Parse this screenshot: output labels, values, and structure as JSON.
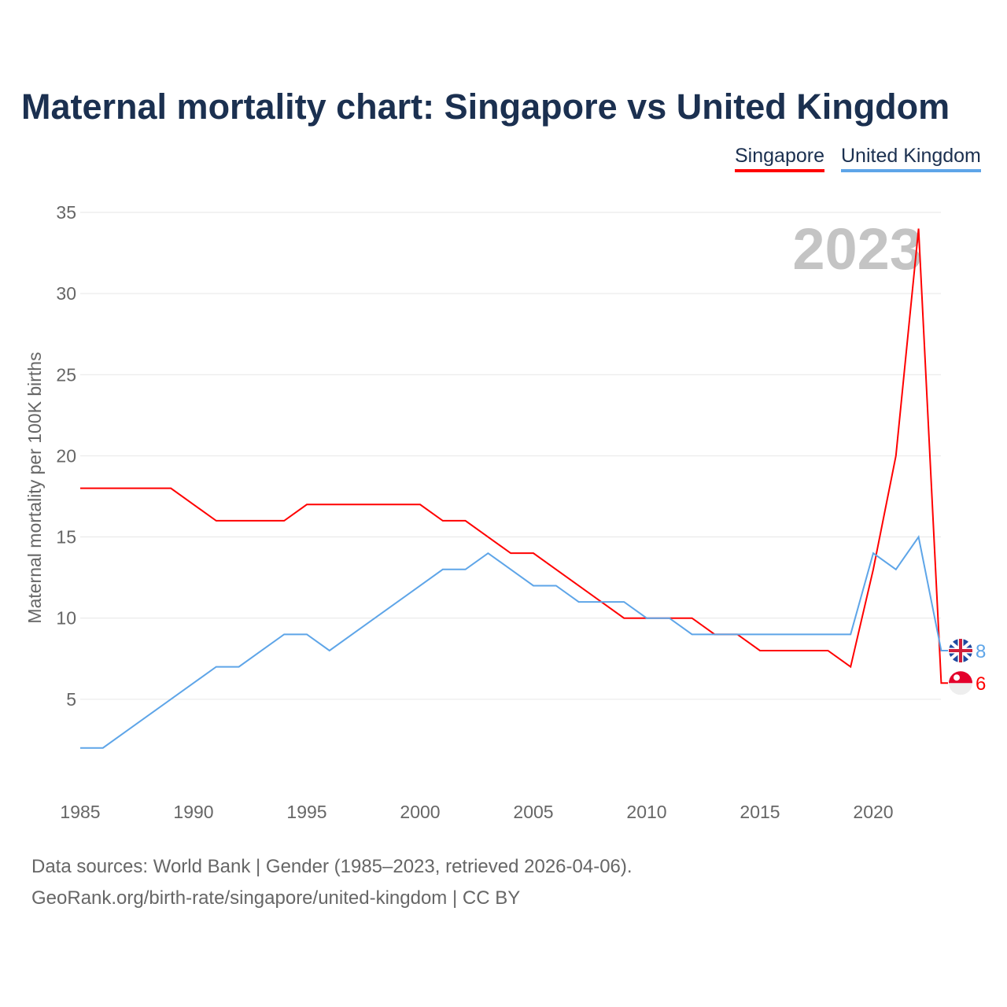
{
  "chart_data": {
    "type": "line",
    "title": "Maternal mortality chart: Singapore vs United Kingdom",
    "ylabel": "Maternal mortality per 100K births",
    "xlabel": "",
    "year_watermark": "2023",
    "xlim": [
      1985,
      2023
    ],
    "ylim": [
      0,
      35
    ],
    "xticks": [
      "1985",
      "1990",
      "1995",
      "2000",
      "2005",
      "2010",
      "2015",
      "2020"
    ],
    "yticks": [
      "5",
      "10",
      "15",
      "20",
      "25",
      "30",
      "35"
    ],
    "x": [
      1985,
      1986,
      1987,
      1988,
      1989,
      1990,
      1991,
      1992,
      1993,
      1994,
      1995,
      1996,
      1997,
      1998,
      1999,
      2000,
      2001,
      2002,
      2003,
      2004,
      2005,
      2006,
      2007,
      2008,
      2009,
      2010,
      2011,
      2012,
      2013,
      2014,
      2015,
      2016,
      2017,
      2018,
      2019,
      2020,
      2021,
      2022,
      2023
    ],
    "series": [
      {
        "name": "Singapore",
        "color": "#ff0000",
        "end_label": "6",
        "values": [
          18,
          18,
          18,
          18,
          18,
          17,
          16,
          16,
          16,
          16,
          17,
          17,
          17,
          17,
          17,
          17,
          16,
          16,
          15,
          14,
          14,
          13,
          12,
          11,
          10,
          10,
          10,
          10,
          9,
          9,
          8,
          8,
          8,
          8,
          7,
          13,
          20,
          34,
          6
        ]
      },
      {
        "name": "United Kingdom",
        "color": "#5ea5e8",
        "end_label": "8",
        "values": [
          2,
          2,
          3,
          4,
          5,
          6,
          7,
          7,
          8,
          9,
          9,
          8,
          9,
          10,
          11,
          12,
          13,
          13,
          14,
          13,
          12,
          12,
          11,
          11,
          11,
          10,
          10,
          9,
          9,
          9,
          9,
          9,
          9,
          9,
          9,
          14,
          13,
          15,
          8
        ]
      }
    ],
    "legend_position": "top-right",
    "grid": true
  },
  "legend": {
    "singapore": "Singapore",
    "uk": "United Kingdom"
  },
  "footer": {
    "line1": "Data sources: World Bank | Gender (1985–2023, retrieved 2026-04-06).",
    "line2": "GeoRank.org/birth-rate/singapore/united-kingdom | CC BY"
  }
}
